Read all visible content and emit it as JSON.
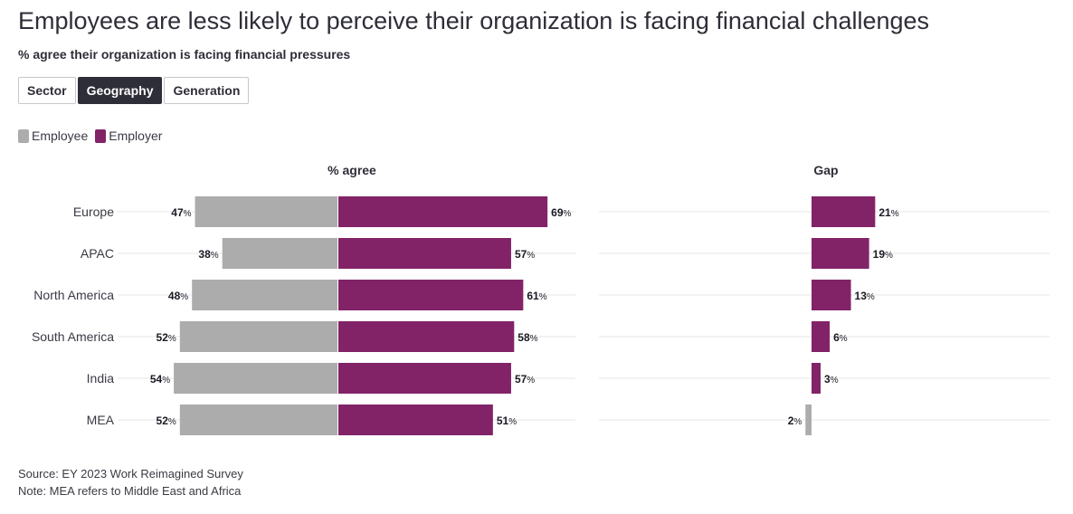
{
  "title": "Employees are less likely to perceive their organization is facing financial challenges",
  "subtitle": "% agree their organization is facing financial pressures",
  "tabs": [
    {
      "label": "Sector",
      "active": false
    },
    {
      "label": "Geography",
      "active": true
    },
    {
      "label": "Generation",
      "active": false
    }
  ],
  "legend": {
    "employee": "Employee",
    "employer": "Employer"
  },
  "colors": {
    "employee": "#acacac",
    "employer": "#822368",
    "grid": "#e6e6e6"
  },
  "chart_data": [
    {
      "type": "bar",
      "title": "% agree",
      "orientation": "diverging-horizontal",
      "categories": [
        "Europe",
        "APAC",
        "North America",
        "South America",
        "India",
        "MEA"
      ],
      "series": [
        {
          "name": "Employee",
          "values": [
            47,
            38,
            48,
            52,
            54,
            52
          ]
        },
        {
          "name": "Employer",
          "values": [
            69,
            57,
            61,
            58,
            57,
            51
          ]
        }
      ],
      "value_suffix": "%",
      "xlim": [
        -70,
        70
      ]
    },
    {
      "type": "bar",
      "title": "Gap",
      "categories": [
        "Europe",
        "APAC",
        "North America",
        "South America",
        "India",
        "MEA"
      ],
      "values": [
        21,
        19,
        13,
        6,
        3,
        -2
      ],
      "value_suffix": "%",
      "xlim": [
        -25,
        25
      ]
    }
  ],
  "footer": {
    "source": "Source: EY 2023 Work Reimagined Survey",
    "note": "Note: MEA refers to Middle East and Africa"
  }
}
